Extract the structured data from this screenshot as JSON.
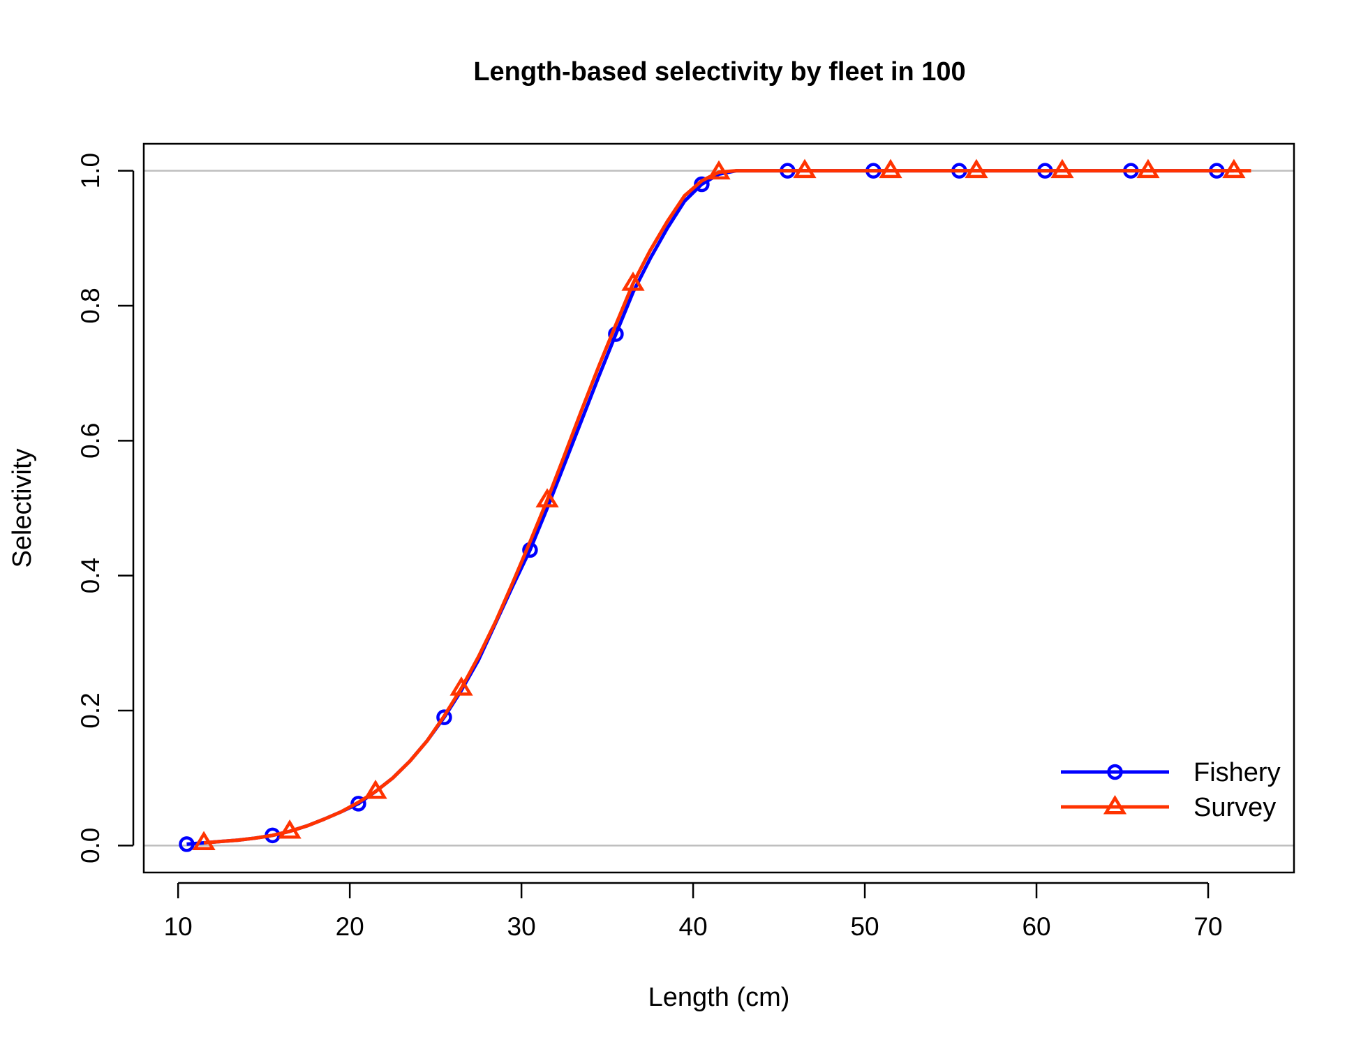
{
  "chart_data": {
    "type": "line",
    "title": "Length-based selectivity by fleet in 100",
    "xlabel": "Length (cm)",
    "ylabel": "Selectivity",
    "xlim": [
      8,
      75
    ],
    "ylim": [
      -0.04,
      1.04
    ],
    "x_ticks": [
      10,
      20,
      30,
      40,
      50,
      60,
      70
    ],
    "x_tick_labels": [
      "10",
      "20",
      "30",
      "40",
      "50",
      "60",
      "70"
    ],
    "y_ticks": [
      0.0,
      0.2,
      0.4,
      0.6,
      0.8,
      1.0
    ],
    "y_tick_labels": [
      "0.0",
      "0.2",
      "0.4",
      "0.6",
      "0.8",
      "1.0"
    ],
    "reference_lines": [
      0,
      1
    ],
    "legend_position": "bottom-right",
    "series": [
      {
        "name": "Fishery",
        "color": "#0000ff",
        "marker": "circle",
        "x": [
          10.5,
          11.5,
          12.5,
          13.5,
          14.5,
          15.5,
          16.5,
          17.5,
          18.5,
          19.5,
          20.5,
          21.5,
          22.5,
          23.5,
          24.5,
          25.5,
          26.5,
          27.5,
          28.5,
          29.5,
          30.5,
          31.5,
          32.5,
          33.5,
          34.5,
          35.5,
          36.5,
          37.5,
          38.5,
          39.5,
          40.5,
          41.5,
          42.5,
          43.5,
          44.5,
          45.5,
          46.5,
          47.5,
          48.5,
          49.5,
          50.5,
          51.5,
          52.5,
          53.5,
          54.5,
          55.5,
          56.5,
          57.5,
          58.5,
          59.5,
          60.5,
          61.5,
          62.5,
          63.5,
          64.5,
          65.5,
          66.5,
          67.5,
          68.5,
          69.5,
          70.5,
          71.5
        ],
        "y": [
          0.002,
          0.004,
          0.006,
          0.008,
          0.011,
          0.015,
          0.021,
          0.029,
          0.039,
          0.05,
          0.062,
          0.08,
          0.1,
          0.125,
          0.155,
          0.19,
          0.23,
          0.275,
          0.33,
          0.385,
          0.438,
          0.5,
          0.565,
          0.63,
          0.695,
          0.758,
          0.82,
          0.87,
          0.915,
          0.955,
          0.98,
          0.995,
          1.0,
          1.0,
          1.0,
          1.0,
          1.0,
          1.0,
          1.0,
          1.0,
          1.0,
          1.0,
          1.0,
          1.0,
          1.0,
          1.0,
          1.0,
          1.0,
          1.0,
          1.0,
          1.0,
          1.0,
          1.0,
          1.0,
          1.0,
          1.0,
          1.0,
          1.0,
          1.0,
          1.0,
          1.0,
          1.0
        ],
        "marker_x": [
          10.5,
          15.5,
          20.5,
          25.5,
          30.5,
          35.5,
          40.5,
          45.5,
          50.5,
          55.5,
          60.5,
          65.5,
          70.5
        ],
        "marker_y": [
          0.002,
          0.015,
          0.062,
          0.19,
          0.438,
          0.758,
          0.98,
          1.0,
          1.0,
          1.0,
          1.0,
          1.0,
          1.0
        ]
      },
      {
        "name": "Survey",
        "color": "#ff3300",
        "marker": "triangle",
        "x": [
          11.5,
          12.5,
          13.5,
          14.5,
          15.5,
          16.5,
          17.5,
          18.5,
          19.5,
          20.5,
          21.5,
          22.5,
          23.5,
          24.5,
          25.5,
          26.5,
          27.5,
          28.5,
          29.5,
          30.5,
          31.5,
          32.5,
          33.5,
          34.5,
          35.5,
          36.5,
          37.5,
          38.5,
          39.5,
          40.5,
          41.5,
          42.5,
          43.5,
          44.5,
          45.5,
          46.5,
          47.5,
          48.5,
          49.5,
          50.5,
          51.5,
          52.5,
          53.5,
          54.5,
          55.5,
          56.5,
          57.5,
          58.5,
          59.5,
          60.5,
          61.5,
          62.5,
          63.5,
          64.5,
          65.5,
          66.5,
          67.5,
          68.5,
          69.5,
          70.5,
          71.5,
          72.5
        ],
        "y": [
          0.004,
          0.006,
          0.008,
          0.011,
          0.015,
          0.021,
          0.029,
          0.039,
          0.05,
          0.064,
          0.08,
          0.1,
          0.125,
          0.155,
          0.192,
          0.233,
          0.28,
          0.332,
          0.39,
          0.45,
          0.512,
          0.578,
          0.645,
          0.71,
          0.772,
          0.833,
          0.882,
          0.925,
          0.963,
          0.985,
          0.998,
          1.0,
          1.0,
          1.0,
          1.0,
          1.0,
          1.0,
          1.0,
          1.0,
          1.0,
          1.0,
          1.0,
          1.0,
          1.0,
          1.0,
          1.0,
          1.0,
          1.0,
          1.0,
          1.0,
          1.0,
          1.0,
          1.0,
          1.0,
          1.0,
          1.0,
          1.0,
          1.0,
          1.0,
          1.0,
          1.0,
          1.0
        ],
        "marker_x": [
          11.5,
          16.5,
          21.5,
          26.5,
          31.5,
          36.5,
          41.5,
          46.5,
          51.5,
          56.5,
          61.5,
          66.5,
          71.5
        ],
        "marker_y": [
          0.004,
          0.021,
          0.08,
          0.233,
          0.512,
          0.833,
          0.998,
          1.0,
          1.0,
          1.0,
          1.0,
          1.0,
          1.0
        ]
      }
    ]
  }
}
